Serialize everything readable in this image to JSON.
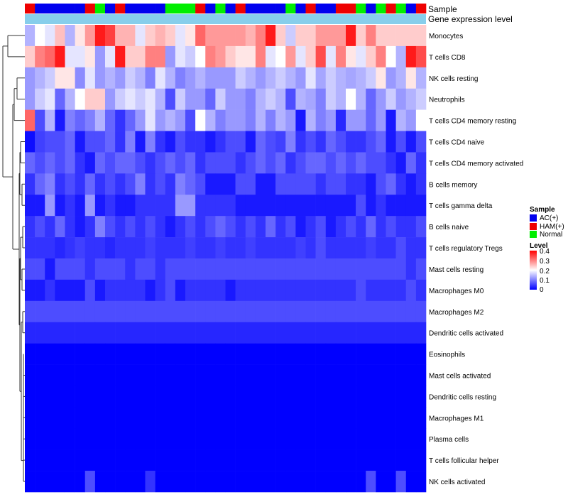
{
  "chart_data": {
    "type": "heatmap",
    "annotation_labels": {
      "sample": "Sample",
      "gene": "Gene expression level"
    },
    "rows": [
      "Monocytes",
      "T cells CD8",
      "NK cells resting",
      "Neutrophils",
      "T cells CD4 memory resting",
      "T cells CD4 naive",
      "T cells CD4 memory activated",
      "B cells memory",
      "T cells gamma delta",
      "B cells naive",
      "T cells regulatory  Tregs",
      "Mast cells resting",
      "Macrophages M0",
      "Macrophages M2",
      "Dendritic cells activated",
      "Eosinophils",
      "Mast cells activated",
      "Dendritic cells resting",
      "Macrophages M1",
      "Plasma cells",
      "T cells follicular helper",
      "NK cells activated"
    ],
    "sample_groups": [
      "HAM(+)",
      "AC(+)",
      "AC(+)",
      "AC(+)",
      "AC(+)",
      "AC(+)",
      "HAM(+)",
      "Normal",
      "AC(+)",
      "HAM(+)",
      "AC(+)",
      "AC(+)",
      "AC(+)",
      "AC(+)",
      "Normal",
      "Normal",
      "Normal",
      "HAM(+)",
      "AC(+)",
      "Normal",
      "AC(+)",
      "HAM(+)",
      "AC(+)",
      "AC(+)",
      "AC(+)",
      "AC(+)",
      "Normal",
      "AC(+)",
      "HAM(+)",
      "AC(+)",
      "AC(+)",
      "HAM(+)",
      "HAM(+)",
      "Normal",
      "AC(+)",
      "Normal",
      "HAM(+)",
      "Normal",
      "AC(+)",
      "HAM(+)"
    ],
    "values": [
      [
        0.14,
        0.2,
        0.18,
        0.25,
        0.14,
        0.22,
        0.28,
        0.38,
        0.35,
        0.26,
        0.26,
        0.18,
        0.24,
        0.26,
        0.24,
        0.18,
        0.22,
        0.32,
        0.28,
        0.28,
        0.28,
        0.28,
        0.26,
        0.3,
        0.38,
        0.24,
        0.16,
        0.24,
        0.24,
        0.28,
        0.28,
        0.28,
        0.38,
        0.24,
        0.3,
        0.24,
        0.24,
        0.24,
        0.24,
        0.24
      ],
      [
        0.24,
        0.3,
        0.32,
        0.38,
        0.18,
        0.18,
        0.22,
        0.12,
        0.18,
        0.38,
        0.24,
        0.24,
        0.3,
        0.3,
        0.12,
        0.18,
        0.16,
        0.2,
        0.3,
        0.28,
        0.24,
        0.22,
        0.22,
        0.3,
        0.18,
        0.2,
        0.28,
        0.18,
        0.24,
        0.34,
        0.18,
        0.3,
        0.22,
        0.18,
        0.24,
        0.3,
        0.2,
        0.14,
        0.38,
        0.34
      ],
      [
        0.12,
        0.14,
        0.16,
        0.22,
        0.22,
        0.11,
        0.18,
        0.12,
        0.14,
        0.12,
        0.16,
        0.14,
        0.1,
        0.18,
        0.14,
        0.1,
        0.12,
        0.14,
        0.12,
        0.12,
        0.12,
        0.16,
        0.14,
        0.12,
        0.14,
        0.16,
        0.14,
        0.12,
        0.18,
        0.13,
        0.16,
        0.14,
        0.13,
        0.14,
        0.16,
        0.22,
        0.12,
        0.14,
        0.22,
        0.14
      ],
      [
        0.12,
        0.16,
        0.18,
        0.08,
        0.14,
        0.2,
        0.24,
        0.24,
        0.12,
        0.16,
        0.18,
        0.16,
        0.18,
        0.14,
        0.06,
        0.16,
        0.12,
        0.12,
        0.08,
        0.16,
        0.12,
        0.12,
        0.1,
        0.14,
        0.16,
        0.14,
        0.06,
        0.14,
        0.13,
        0.1,
        0.16,
        0.14,
        0.2,
        0.14,
        0.08,
        0.12,
        0.16,
        0.12,
        0.14,
        0.16
      ],
      [
        0.32,
        0.06,
        0.14,
        0.02,
        0.1,
        0.08,
        0.1,
        0.14,
        0.08,
        0.04,
        0.08,
        0.12,
        0.18,
        0.12,
        0.14,
        0.12,
        0.06,
        0.2,
        0.14,
        0.1,
        0.12,
        0.12,
        0.1,
        0.14,
        0.1,
        0.14,
        0.12,
        0.02,
        0.14,
        0.1,
        0.12,
        0.03,
        0.12,
        0.12,
        0.08,
        0.12,
        0.02,
        0.14,
        0.12,
        0.2
      ],
      [
        0.01,
        0.05,
        0.06,
        0.06,
        0.08,
        0.02,
        0.06,
        0.06,
        0.08,
        0.04,
        0.1,
        0.02,
        0.1,
        0.04,
        0.02,
        0.06,
        0.04,
        0.04,
        0.02,
        0.04,
        0.06,
        0.06,
        0.02,
        0.08,
        0.06,
        0.05,
        0.1,
        0.04,
        0.06,
        0.04,
        0.08,
        0.06,
        0.04,
        0.04,
        0.06,
        0.08,
        0.02,
        0.06,
        0.02,
        0.06
      ],
      [
        0.08,
        0.06,
        0.08,
        0.06,
        0.08,
        0.04,
        0.02,
        0.08,
        0.06,
        0.08,
        0.08,
        0.06,
        0.04,
        0.06,
        0.08,
        0.06,
        0.08,
        0.04,
        0.06,
        0.06,
        0.06,
        0.04,
        0.06,
        0.08,
        0.06,
        0.08,
        0.04,
        0.06,
        0.08,
        0.08,
        0.06,
        0.08,
        0.06,
        0.08,
        0.06,
        0.06,
        0.04,
        0.02,
        0.08,
        0.04
      ],
      [
        0.04,
        0.08,
        0.1,
        0.04,
        0.06,
        0.04,
        0.08,
        0.04,
        0.06,
        0.04,
        0.06,
        0.1,
        0.04,
        0.06,
        0.04,
        0.1,
        0.08,
        0.06,
        0.02,
        0.02,
        0.02,
        0.06,
        0.06,
        0.02,
        0.02,
        0.06,
        0.06,
        0.06,
        0.06,
        0.04,
        0.06,
        0.06,
        0.04,
        0.04,
        0.02,
        0.06,
        0.08,
        0.04,
        0.02,
        0.04
      ],
      [
        0.02,
        0.02,
        0.12,
        0.02,
        0.04,
        0.02,
        0.12,
        0.02,
        0.04,
        0.02,
        0.02,
        0.04,
        0.04,
        0.04,
        0.04,
        0.12,
        0.12,
        0.04,
        0.04,
        0.04,
        0.04,
        0.02,
        0.02,
        0.02,
        0.02,
        0.02,
        0.02,
        0.02,
        0.02,
        0.02,
        0.02,
        0.02,
        0.02,
        0.06,
        0.02,
        0.04,
        0.02,
        0.02,
        0.02,
        0.02
      ],
      [
        0.04,
        0.06,
        0.04,
        0.08,
        0.04,
        0.02,
        0.04,
        0.1,
        0.06,
        0.04,
        0.06,
        0.04,
        0.06,
        0.04,
        0.02,
        0.04,
        0.06,
        0.04,
        0.06,
        0.08,
        0.06,
        0.04,
        0.06,
        0.04,
        0.08,
        0.04,
        0.06,
        0.02,
        0.04,
        0.06,
        0.02,
        0.04,
        0.06,
        0.04,
        0.08,
        0.04,
        0.06,
        0.04,
        0.04,
        0.06
      ],
      [
        0.04,
        0.04,
        0.04,
        0.03,
        0.04,
        0.05,
        0.04,
        0.04,
        0.03,
        0.04,
        0.04,
        0.04,
        0.05,
        0.04,
        0.04,
        0.04,
        0.05,
        0.04,
        0.04,
        0.05,
        0.04,
        0.04,
        0.05,
        0.04,
        0.04,
        0.04,
        0.04,
        0.05,
        0.04,
        0.06,
        0.04,
        0.04,
        0.04,
        0.04,
        0.05,
        0.04,
        0.04,
        0.06,
        0.04,
        0.04
      ],
      [
        0.06,
        0.06,
        0.02,
        0.06,
        0.06,
        0.06,
        0.04,
        0.06,
        0.06,
        0.06,
        0.04,
        0.06,
        0.06,
        0.04,
        0.06,
        0.06,
        0.06,
        0.06,
        0.06,
        0.06,
        0.06,
        0.06,
        0.06,
        0.06,
        0.06,
        0.06,
        0.06,
        0.06,
        0.06,
        0.06,
        0.06,
        0.06,
        0.06,
        0.06,
        0.06,
        0.06,
        0.06,
        0.06,
        0.04,
        0.06
      ],
      [
        0.02,
        0.02,
        0.04,
        0.02,
        0.02,
        0.02,
        0.06,
        0.02,
        0.04,
        0.04,
        0.04,
        0.04,
        0.02,
        0.04,
        0.06,
        0.02,
        0.04,
        0.04,
        0.04,
        0.04,
        0.02,
        0.04,
        0.04,
        0.04,
        0.04,
        0.04,
        0.04,
        0.04,
        0.04,
        0.04,
        0.04,
        0.04,
        0.04,
        0.06,
        0.04,
        0.04,
        0.04,
        0.04,
        0.06,
        0.04
      ],
      [
        0.06,
        0.06,
        0.06,
        0.06,
        0.06,
        0.06,
        0.06,
        0.06,
        0.06,
        0.06,
        0.06,
        0.06,
        0.06,
        0.06,
        0.06,
        0.06,
        0.06,
        0.06,
        0.06,
        0.06,
        0.06,
        0.06,
        0.06,
        0.06,
        0.06,
        0.06,
        0.06,
        0.06,
        0.06,
        0.06,
        0.06,
        0.06,
        0.06,
        0.06,
        0.06,
        0.06,
        0.06,
        0.06,
        0.06,
        0.06
      ],
      [
        0.03,
        0.03,
        0.03,
        0.03,
        0.03,
        0.03,
        0.03,
        0.03,
        0.03,
        0.03,
        0.03,
        0.03,
        0.03,
        0.03,
        0.03,
        0.03,
        0.03,
        0.03,
        0.03,
        0.03,
        0.03,
        0.03,
        0.03,
        0.03,
        0.03,
        0.03,
        0.03,
        0.03,
        0.03,
        0.03,
        0.03,
        0.03,
        0.03,
        0.03,
        0.03,
        0.03,
        0.03,
        0.03,
        0.03,
        0.03
      ],
      [
        0,
        0,
        0,
        0,
        0,
        0,
        0,
        0,
        0,
        0,
        0,
        0,
        0,
        0,
        0,
        0,
        0,
        0,
        0,
        0,
        0,
        0,
        0,
        0,
        0,
        0,
        0,
        0,
        0,
        0,
        0,
        0,
        0,
        0,
        0,
        0,
        0,
        0,
        0,
        0
      ],
      [
        0,
        0,
        0,
        0,
        0,
        0,
        0,
        0,
        0,
        0,
        0,
        0,
        0,
        0,
        0,
        0,
        0,
        0,
        0,
        0,
        0,
        0,
        0,
        0,
        0,
        0,
        0,
        0,
        0,
        0,
        0,
        0,
        0,
        0,
        0,
        0,
        0,
        0,
        0,
        0
      ],
      [
        0,
        0,
        0,
        0,
        0,
        0,
        0,
        0,
        0,
        0,
        0,
        0,
        0,
        0,
        0,
        0,
        0,
        0,
        0,
        0,
        0,
        0,
        0,
        0,
        0,
        0,
        0,
        0,
        0,
        0,
        0,
        0,
        0,
        0,
        0,
        0,
        0,
        0,
        0,
        0
      ],
      [
        0,
        0,
        0,
        0,
        0,
        0,
        0,
        0,
        0,
        0,
        0,
        0,
        0,
        0,
        0,
        0,
        0,
        0,
        0,
        0,
        0,
        0,
        0,
        0,
        0,
        0,
        0,
        0,
        0,
        0,
        0,
        0,
        0,
        0,
        0,
        0,
        0,
        0,
        0,
        0
      ],
      [
        0,
        0,
        0,
        0,
        0,
        0,
        0,
        0,
        0,
        0,
        0,
        0,
        0,
        0,
        0,
        0,
        0,
        0,
        0,
        0,
        0,
        0,
        0,
        0,
        0,
        0,
        0,
        0,
        0,
        0,
        0,
        0,
        0,
        0,
        0,
        0,
        0,
        0,
        0,
        0
      ],
      [
        0,
        0,
        0,
        0,
        0,
        0,
        0,
        0,
        0,
        0,
        0,
        0,
        0,
        0,
        0,
        0,
        0,
        0,
        0,
        0,
        0,
        0,
        0,
        0,
        0,
        0,
        0,
        0,
        0,
        0,
        0,
        0,
        0,
        0,
        0,
        0,
        0,
        0,
        0,
        0
      ],
      [
        0,
        0,
        0,
        0,
        0,
        0,
        0.06,
        0,
        0,
        0,
        0,
        0,
        0.04,
        0,
        0,
        0,
        0,
        0,
        0,
        0,
        0,
        0,
        0,
        0,
        0,
        0,
        0,
        0,
        0,
        0,
        0,
        0,
        0,
        0,
        0.06,
        0,
        0,
        0.06,
        0,
        0
      ]
    ],
    "legend": {
      "sample_title": "Sample",
      "sample_entries": [
        {
          "label": "AC(+)",
          "color": "#0000ee"
        },
        {
          "label": "HAM(+)",
          "color": "#ee0000"
        },
        {
          "label": "Normal",
          "color": "#00ee00"
        }
      ],
      "level_title": "Level",
      "level_ticks": [
        "0.4",
        "0.3",
        "0.2",
        "0.1",
        "0"
      ]
    },
    "color_scale": {
      "min": 0,
      "max": 0.4,
      "low": "#0000ff",
      "mid": "#ffffff",
      "high": "#ff0000",
      "midpoint": 0.2
    },
    "gene_bar_color": "#87ceeb",
    "xlabel": "",
    "ylabel": ""
  }
}
